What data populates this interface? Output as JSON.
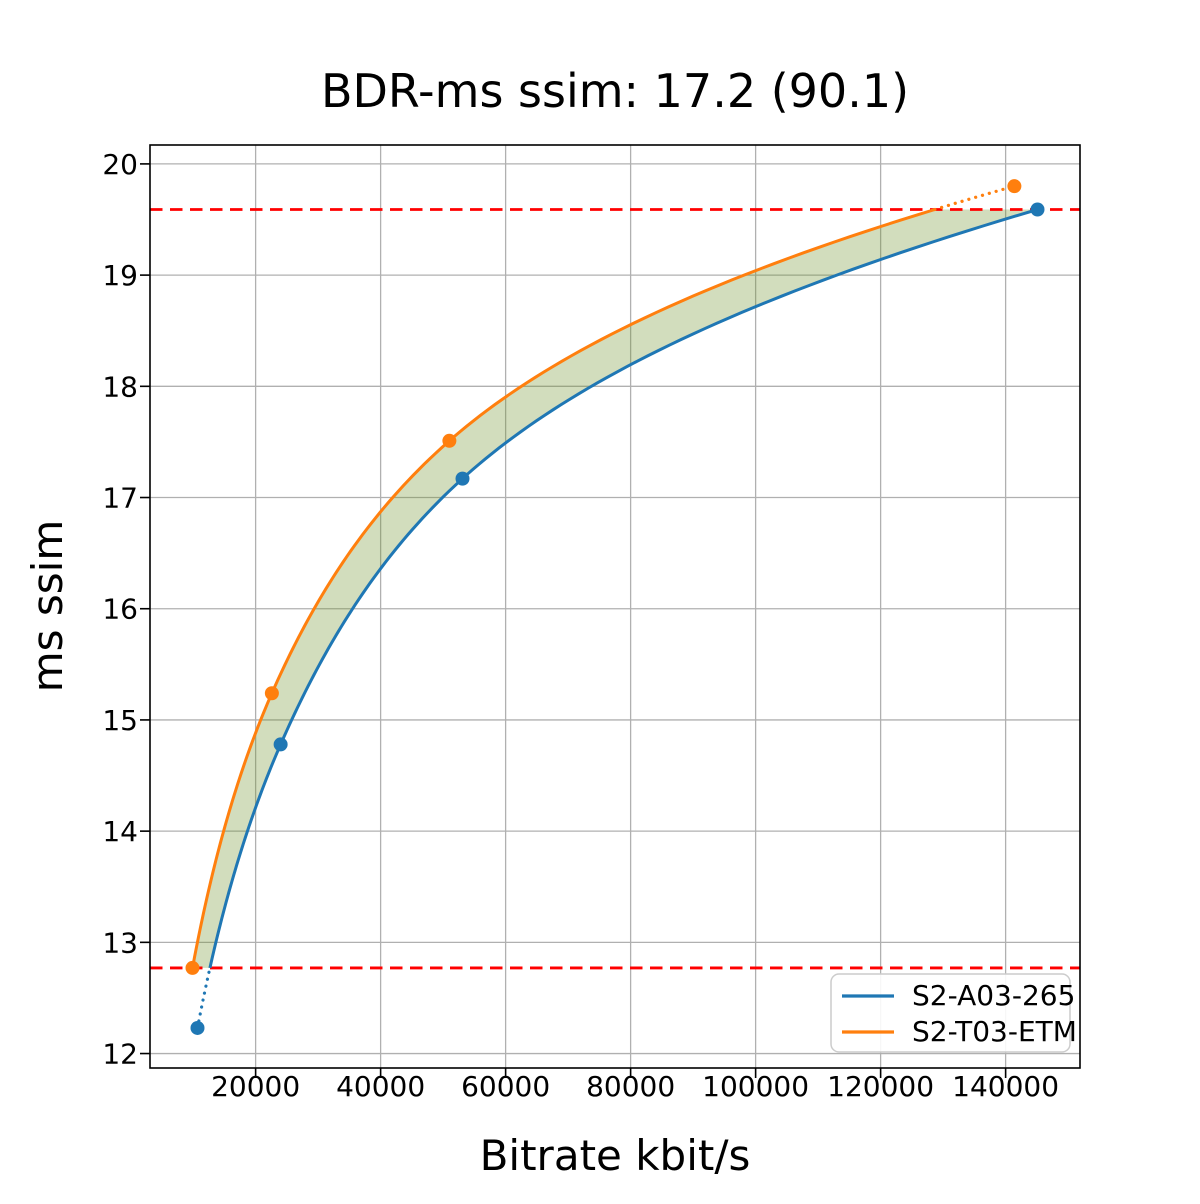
{
  "chart_data": {
    "type": "line",
    "title": "BDR-ms ssim: 17.2 (90.1)",
    "xlabel": "Bitrate kbit/s",
    "ylabel": "ms ssim",
    "xlim": [
      3100,
      151900
    ],
    "ylim": [
      11.87,
      20.17
    ],
    "x_ticks": [
      20000,
      40000,
      60000,
      80000,
      100000,
      120000,
      140000
    ],
    "y_ticks": [
      12,
      13,
      14,
      15,
      16,
      17,
      18,
      19,
      20
    ],
    "grid": true,
    "grid_color": "#b0b0b0",
    "background_color": "#ffffff",
    "interpolation": "pchip-log-rate",
    "legend_position": "lower right",
    "series": [
      {
        "name": "S2-A03-265",
        "color": "#1f77b4",
        "x": [
          10700,
          24000,
          53100,
          145100
        ],
        "y": [
          12.23,
          14.78,
          17.17,
          19.59
        ]
      },
      {
        "name": "S2-T03-ETM",
        "color": "#ff7f0e",
        "x": [
          9900,
          22600,
          51000,
          141400
        ],
        "y": [
          12.77,
          15.24,
          17.51,
          19.8
        ]
      }
    ],
    "overlap_lines": {
      "color": "#ff0000",
      "style": "dashed",
      "values": [
        12.77,
        19.59
      ]
    },
    "fill_between": {
      "color": "#6b8e23",
      "opacity": 0.3
    }
  }
}
